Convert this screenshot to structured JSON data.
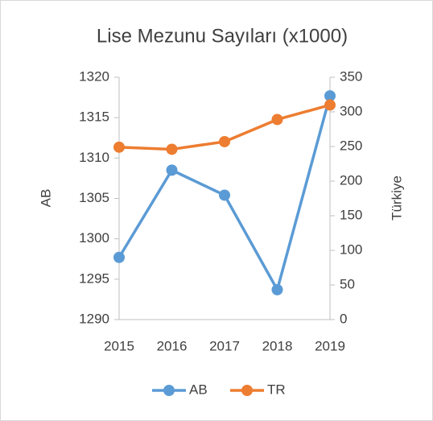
{
  "chart_data": {
    "type": "line",
    "title": "Lise Mezunu Sayıları (x1000)",
    "y_label": "AB",
    "y2_label": "Türkiye",
    "categories": [
      "2015",
      "2016",
      "2017",
      "2018",
      "2019"
    ],
    "series": [
      {
        "name": "AB",
        "color": "#5b9bd5",
        "values": [
          1297.7,
          1308.5,
          1305.4,
          1293.7,
          1317.7
        ]
      },
      {
        "name": "TR",
        "color": "#ed7d31",
        "axis": "y2",
        "values": [
          249,
          246,
          257,
          289,
          310
        ]
      }
    ],
    "ylim": [
      1290,
      1320
    ],
    "yticks": [
      1290,
      1295,
      1300,
      1305,
      1310,
      1315,
      1320
    ],
    "y2lim": [
      0,
      350
    ],
    "y2ticks": [
      0,
      50,
      100,
      150,
      200,
      250,
      300,
      350
    ],
    "legend": "bottom"
  }
}
